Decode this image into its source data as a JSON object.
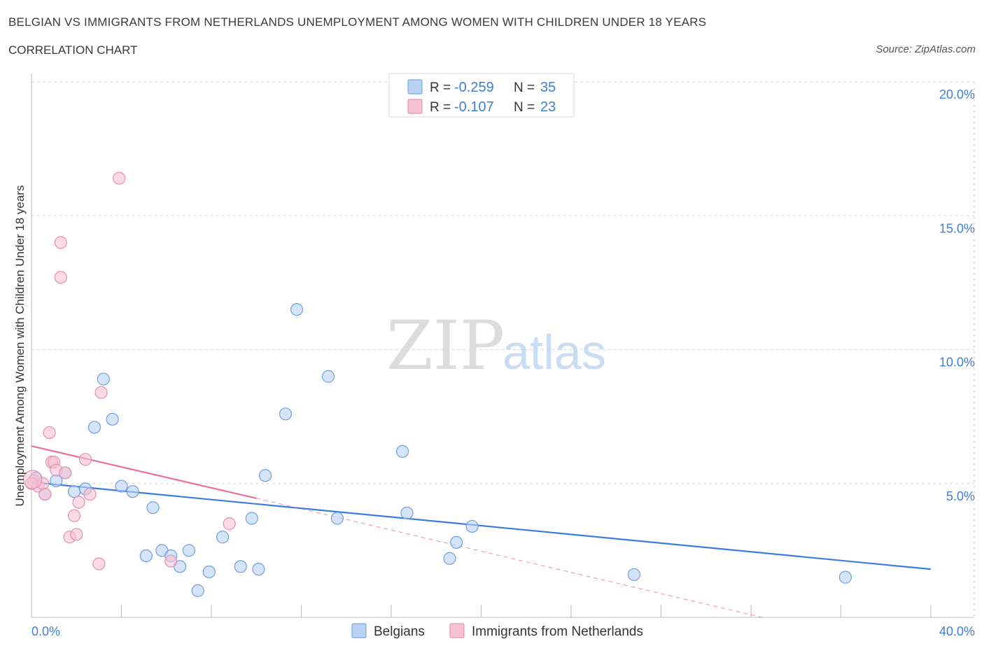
{
  "title": "BELGIAN VS IMMIGRANTS FROM NETHERLANDS UNEMPLOYMENT AMONG WOMEN WITH CHILDREN UNDER 18 YEARS",
  "subtitle": "CORRELATION CHART",
  "source": "Source: ZipAtlas.com",
  "watermark": {
    "zip": "ZIP",
    "atlas": "atlas"
  },
  "colors": {
    "blue": "#3b7ddd",
    "blue_fill": "#b9d2f3",
    "pink": "#e8709a",
    "pink_fill": "#f6c2d3",
    "tick_text": "#3d7fd6",
    "grid": "#d5d5d5"
  },
  "legend": {
    "rows": [
      {
        "r_label": "R = ",
        "r_value": "-0.259",
        "n_label": "N = ",
        "n_value": "35",
        "color": "#b9d2f3",
        "stroke": "#7aa8e6"
      },
      {
        "r_label": "R = ",
        "r_value": "-0.107",
        "n_label": "N = ",
        "n_value": "23",
        "color": "#f6c2d3",
        "stroke": "#e895b2"
      }
    ]
  },
  "bottom_legend": [
    {
      "label": "Belgians",
      "color": "#b9d2f3",
      "stroke": "#7aa8e6"
    },
    {
      "label": "Immigrants from Netherlands",
      "color": "#f6c2d3",
      "stroke": "#e895b2"
    }
  ],
  "chart_data": {
    "type": "scatter",
    "title": "BELGIAN VS IMMIGRANTS FROM NETHERLANDS UNEMPLOYMENT AMONG WOMEN WITH CHILDREN UNDER 18 YEARS",
    "ylabel": "Unemployment Among Women with Children Under 18 years",
    "xlabel": "",
    "xlim": [
      0,
      40
    ],
    "ylim": [
      0,
      20
    ],
    "x_tick_labels": [
      {
        "value": 0,
        "label": "0.0%"
      },
      {
        "value": 40,
        "label": "40.0%"
      }
    ],
    "y_tick_labels": [
      {
        "value": 5,
        "label": "5.0%"
      },
      {
        "value": 10,
        "label": "10.0%"
      },
      {
        "value": 15,
        "label": "15.0%"
      },
      {
        "value": 20,
        "label": "20.0%"
      }
    ],
    "grid": true,
    "series": [
      {
        "name": "Belgians",
        "color": "#3b7ddd",
        "points": [
          [
            0.2,
            5.2
          ],
          [
            0.6,
            4.6
          ],
          [
            1.1,
            5.1
          ],
          [
            1.5,
            5.4
          ],
          [
            1.9,
            4.7
          ],
          [
            2.4,
            4.8
          ],
          [
            2.8,
            7.1
          ],
          [
            3.2,
            8.9
          ],
          [
            3.6,
            7.4
          ],
          [
            4.0,
            4.9
          ],
          [
            4.5,
            4.7
          ],
          [
            5.1,
            2.3
          ],
          [
            5.4,
            4.1
          ],
          [
            5.8,
            2.5
          ],
          [
            6.2,
            2.3
          ],
          [
            6.6,
            1.9
          ],
          [
            7.0,
            2.5
          ],
          [
            7.4,
            1.0
          ],
          [
            7.9,
            1.7
          ],
          [
            8.5,
            3.0
          ],
          [
            9.3,
            1.9
          ],
          [
            9.8,
            3.7
          ],
          [
            10.1,
            1.8
          ],
          [
            10.4,
            5.3
          ],
          [
            11.3,
            7.6
          ],
          [
            11.8,
            11.5
          ],
          [
            13.2,
            9.0
          ],
          [
            13.6,
            3.7
          ],
          [
            16.5,
            6.2
          ],
          [
            16.7,
            3.9
          ],
          [
            18.6,
            2.2
          ],
          [
            18.9,
            2.8
          ],
          [
            19.6,
            3.4
          ],
          [
            26.8,
            1.6
          ],
          [
            36.2,
            1.5
          ]
        ],
        "trend": {
          "x": [
            0,
            40
          ],
          "y": [
            5.05,
            1.8
          ]
        }
      },
      {
        "name": "Immigrants from Netherlands",
        "color": "#e8709a",
        "points": [
          [
            0.1,
            5.1
          ],
          [
            0.3,
            4.9
          ],
          [
            0.5,
            5.0
          ],
          [
            0.6,
            4.6
          ],
          [
            0.8,
            6.9
          ],
          [
            0.9,
            5.8
          ],
          [
            1.0,
            5.8
          ],
          [
            1.1,
            5.5
          ],
          [
            1.3,
            12.7
          ],
          [
            1.3,
            14.0
          ],
          [
            1.5,
            5.4
          ],
          [
            1.7,
            3.0
          ],
          [
            1.9,
            3.8
          ],
          [
            2.0,
            3.1
          ],
          [
            2.1,
            4.3
          ],
          [
            2.4,
            5.9
          ],
          [
            2.6,
            4.6
          ],
          [
            3.0,
            2.0
          ],
          [
            3.1,
            8.4
          ],
          [
            3.9,
            16.4
          ],
          [
            6.2,
            2.1
          ],
          [
            8.8,
            3.5
          ],
          [
            0.0,
            5.0
          ]
        ],
        "trend": {
          "x": [
            0,
            10
          ],
          "y": [
            6.4,
            4.45
          ]
        },
        "trend_extension": {
          "x": [
            10,
            32.5
          ],
          "y": [
            4.45,
            0.0
          ]
        }
      }
    ]
  }
}
